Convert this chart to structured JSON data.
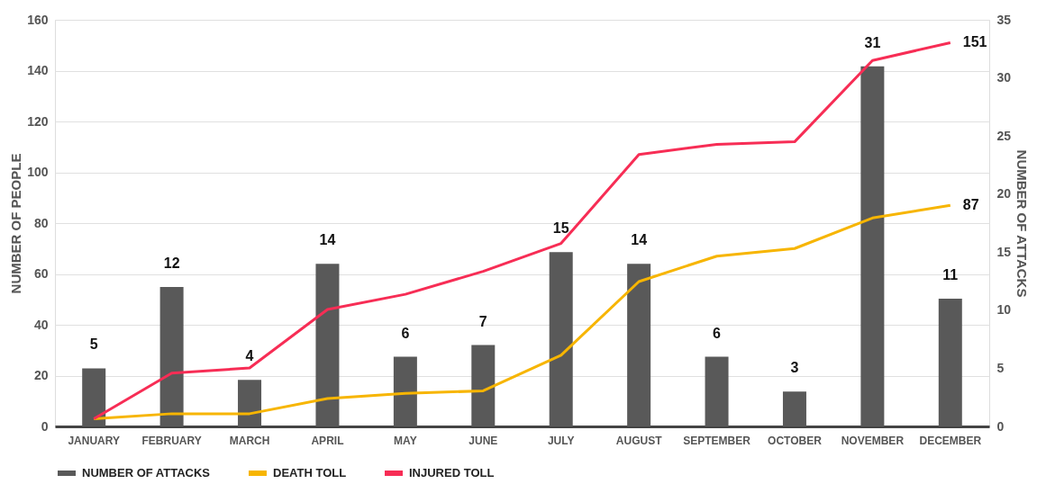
{
  "chart_data": {
    "type": "bar",
    "xlabel": null,
    "ylabel": "NUMBER OF PEOPLE",
    "y2label": "NUMBER OF ATTACKS",
    "categories": [
      "JANUARY",
      "FEBRUARY",
      "MARCH",
      "APRIL",
      "MAY",
      "JUNE",
      "JULY",
      "AUGUST",
      "SEPTEMBER",
      "OCTOBER",
      "NOVEMBER",
      "DECEMBER"
    ],
    "series": [
      {
        "name": "NUMBER OF ATTACKS",
        "axis": "y2",
        "color": "#595959",
        "values": [
          5,
          12,
          4,
          14,
          6,
          7,
          15,
          14,
          6,
          3,
          31,
          11
        ],
        "value_labels": [
          "5",
          "12",
          "4",
          "14",
          "6",
          "7",
          "15",
          "14",
          "6",
          "3",
          "31",
          "11"
        ]
      },
      {
        "name": "DEATH TOLL",
        "type": "line",
        "axis": "y",
        "color": "#f7b500",
        "values": [
          3,
          5,
          5,
          11,
          13,
          14,
          28,
          57,
          67,
          70,
          82,
          87
        ],
        "value_labels": [
          null,
          null,
          null,
          null,
          null,
          null,
          null,
          null,
          null,
          null,
          null,
          "87"
        ]
      },
      {
        "name": "INJURED TOLL",
        "type": "line",
        "axis": "y",
        "color": "#f72d55",
        "values": [
          3,
          21,
          23,
          46,
          52,
          61,
          72,
          107,
          111,
          112,
          144,
          151
        ],
        "value_labels": [
          null,
          null,
          null,
          null,
          null,
          null,
          null,
          null,
          null,
          null,
          null,
          "151"
        ]
      }
    ],
    "ylim": [
      0,
      160
    ],
    "yticks": [
      0,
      20,
      40,
      60,
      80,
      100,
      120,
      140,
      160
    ],
    "y2lim": [
      0,
      35
    ],
    "y2ticks": [
      0,
      5,
      10,
      15,
      20,
      25,
      30,
      35
    ],
    "grid": "y",
    "legend": "bottom"
  }
}
